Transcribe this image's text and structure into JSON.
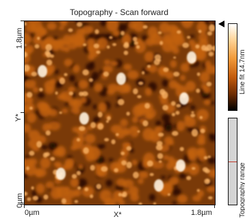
{
  "title": "Topography - Scan forward",
  "axes": {
    "y_top": "1.8µm",
    "y_mid": "Y*",
    "y_bottom": "0µm",
    "x_left": "0µm",
    "x_mid": "X*",
    "x_right": "1.8µm"
  },
  "colorbar": {
    "label": "Line fit 14.7nm",
    "range_label": "Topography range",
    "gradient": [
      "#ffffff",
      "#ffd59a",
      "#f29a3a",
      "#c25a0c",
      "#6a2a02",
      "#000000"
    ]
  },
  "topo_colors": {
    "base": "#7a3a08",
    "dark": "#1e0800",
    "mid": "#c2620f",
    "light": "#f7b164",
    "highlight": "#fff2de"
  }
}
